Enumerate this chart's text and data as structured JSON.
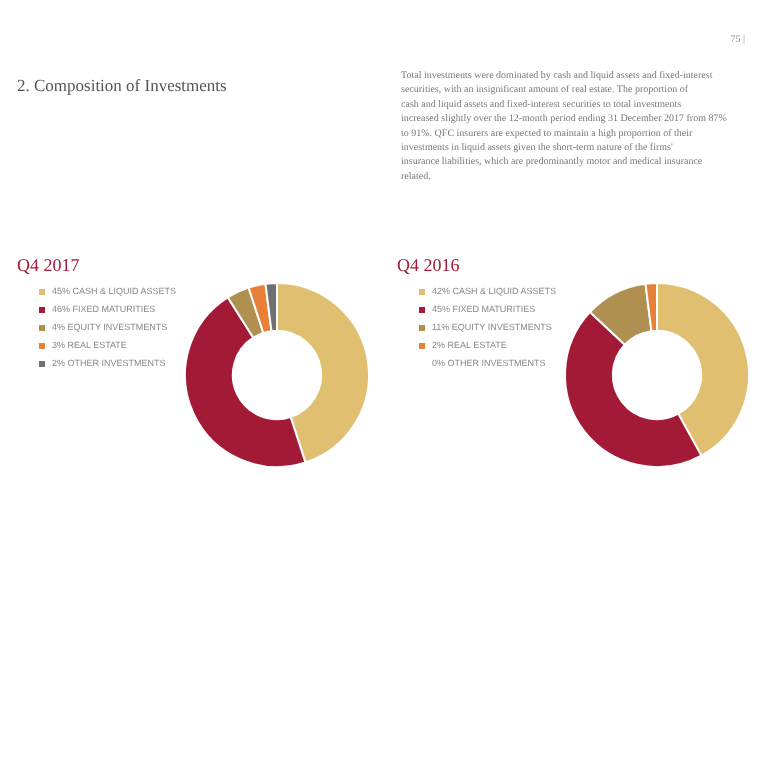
{
  "chart_data": [
    {
      "type": "other",
      "title": "2. Composition of Investments",
      "annotations": [
        "Total investments were dominated by cash and liquid assets and fixed-interest securities, with an insignificant amount of real estate. The proportion of cash and liquid assets and fixed-interest securities to total investments increased slightly over the 12-month period ending 31 December 2017 from 87% to 91%. QFC insurers are expected to maintain a high proportion of their investments in liquid assets given the short-term nature of the firms' insurance liabilities, which are predominantly motor and medical insurance related.",
        "75 |"
      ]
    },
    {
      "type": "donut",
      "title": "Q4 2017",
      "categories": [
        "45% CASH & LIQUID ASSETS",
        "46% FIXED MATURITIES",
        "4% EQUITY INVESTMENTS",
        "3% REAL ESTATE",
        "2% OTHER INVESTMENTS"
      ],
      "values": [
        45,
        46,
        4,
        3,
        2
      ],
      "colors": [
        "#e0c070",
        "#a31a36",
        "#b09050",
        "#e8803a",
        "#707070"
      ],
      "legend": "top left"
    },
    {
      "type": "donut",
      "title": "Q4 2016",
      "categories": [
        "42% CASH & LIQUID ASSETS",
        "45% FIXED MATURITIES",
        "11% EQUITY INVESTMENTS",
        "2% REAL ESTATE",
        "0% OTHER INVESTMENTS"
      ],
      "values": [
        42,
        45,
        11,
        2,
        0
      ],
      "colors": [
        "#e0c070",
        "#a31a36",
        "#b09050",
        "#e8803a",
        "#707070"
      ],
      "legend": "top left"
    }
  ]
}
